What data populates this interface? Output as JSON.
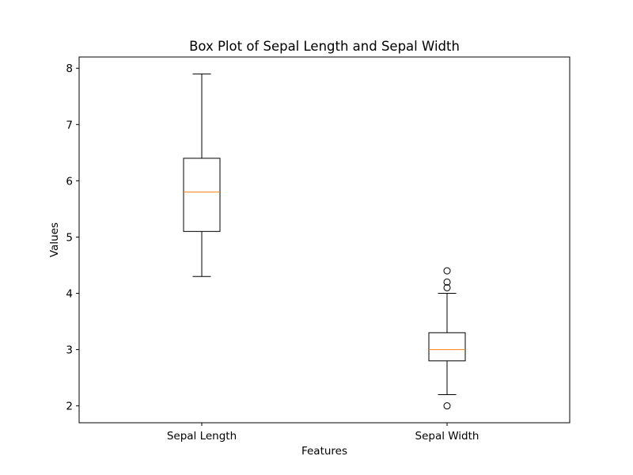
{
  "chart_data": {
    "type": "box",
    "title": "Box Plot of Sepal Length and Sepal Width",
    "xlabel": "Features",
    "ylabel": "Values",
    "categories": [
      "Sepal Length",
      "Sepal Width"
    ],
    "ylim": [
      1.7,
      8.2
    ],
    "yticks": [
      2,
      3,
      4,
      5,
      6,
      7,
      8
    ],
    "grid": false,
    "boxes": [
      {
        "name": "Sepal Length",
        "whisker_low": 4.3,
        "q1": 5.1,
        "median": 5.8,
        "q3": 6.4,
        "whisker_high": 7.9,
        "outliers": []
      },
      {
        "name": "Sepal Width",
        "whisker_low": 2.2,
        "q1": 2.8,
        "median": 3.0,
        "q3": 3.3,
        "whisker_high": 4.0,
        "outliers": [
          2.0,
          4.1,
          4.2,
          4.4
        ]
      }
    ],
    "colors": {
      "box": "#000000",
      "median": "#ff7f0e",
      "outlier": "#000000"
    }
  }
}
